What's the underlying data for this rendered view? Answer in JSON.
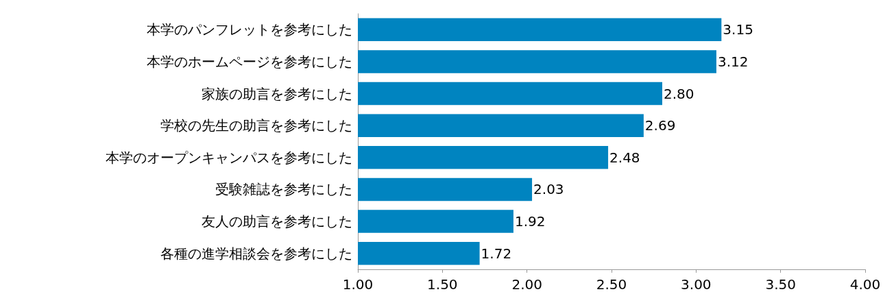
{
  "chart_data": {
    "type": "bar",
    "orientation": "horizontal",
    "categories": [
      "本学のパンフレットを参考にした",
      "本学のホームページを参考にした",
      "家族の助言を参考にした",
      "学校の先生の助言を参考にした",
      "本学のオープンキャンパスを参考にした",
      "受験雑誌を参考にした",
      "友人の助言を参考にした",
      "各種の進学相談会を参考にした"
    ],
    "values": [
      3.15,
      3.12,
      2.8,
      2.69,
      2.48,
      2.03,
      1.92,
      1.72
    ],
    "value_labels": [
      "3.15",
      "3.12",
      "2.80",
      "2.69",
      "2.48",
      "2.03",
      "1.92",
      "1.72"
    ],
    "color": "#0084c0",
    "xlim": [
      1,
      4
    ],
    "xticks": [
      {
        "value": 1,
        "label": "1.00"
      },
      {
        "value": 1.5,
        "label": "1.50"
      },
      {
        "value": 2,
        "label": "2.00"
      },
      {
        "value": 2.5,
        "label": "2.50"
      },
      {
        "value": 3,
        "label": "3.00"
      },
      {
        "value": 3.5,
        "label": "3.50"
      },
      {
        "value": 4,
        "label": "4.00"
      }
    ],
    "grid": false
  }
}
